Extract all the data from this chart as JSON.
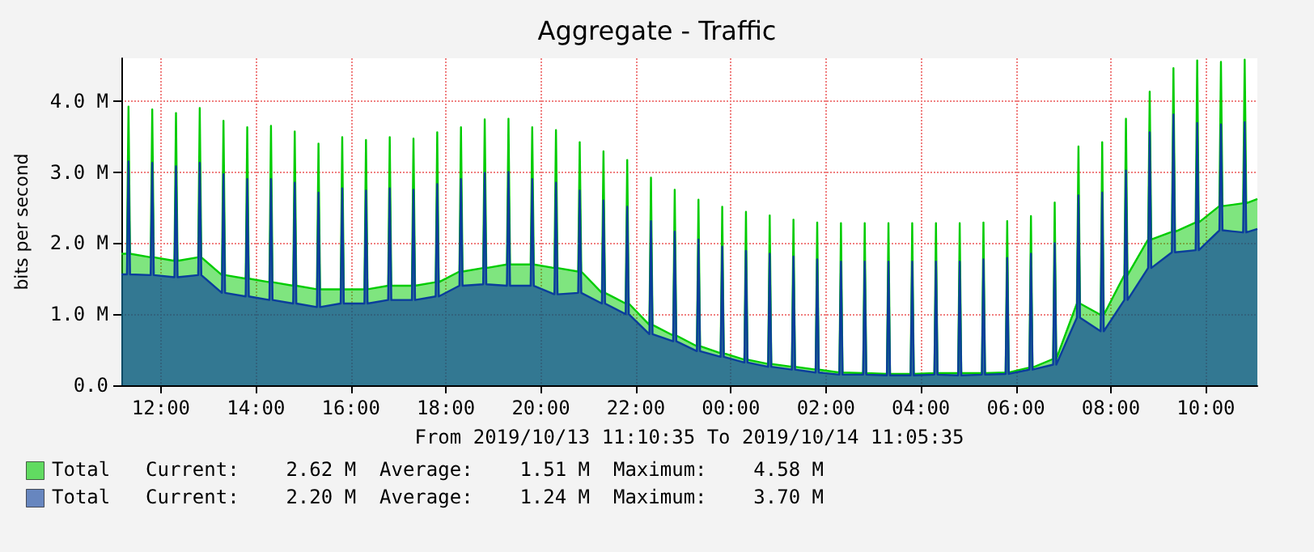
{
  "chart_data": {
    "type": "area",
    "title": "Aggregate - Traffic",
    "xlabel": "From 2019/10/13 11:10:35 To 2019/10/14 11:05:35",
    "ylabel": "bits per second",
    "x": [
      "2019-10-13T11:10",
      "2019-10-13T11:17",
      "2019-10-13T11:19",
      "2019-10-13T11:21",
      "2019-10-13T11:47",
      "2019-10-13T11:49",
      "2019-10-13T11:51",
      "2019-10-13T12:17",
      "2019-10-13T12:19",
      "2019-10-13T12:21",
      "2019-10-13T12:47",
      "2019-10-13T12:49",
      "2019-10-13T12:51",
      "2019-10-13T13:17",
      "2019-10-13T13:19",
      "2019-10-13T13:21",
      "2019-10-13T13:47",
      "2019-10-13T13:49",
      "2019-10-13T13:51",
      "2019-10-13T14:17",
      "2019-10-13T14:19",
      "2019-10-13T14:21",
      "2019-10-13T14:47",
      "2019-10-13T14:49",
      "2019-10-13T14:51",
      "2019-10-13T15:17",
      "2019-10-13T15:19",
      "2019-10-13T15:21",
      "2019-10-13T15:47",
      "2019-10-13T15:49",
      "2019-10-13T15:51",
      "2019-10-13T16:17",
      "2019-10-13T16:19",
      "2019-10-13T16:21",
      "2019-10-13T16:47",
      "2019-10-13T16:49",
      "2019-10-13T16:51",
      "2019-10-13T17:17",
      "2019-10-13T17:19",
      "2019-10-13T17:21",
      "2019-10-13T17:47",
      "2019-10-13T17:49",
      "2019-10-13T17:51",
      "2019-10-13T18:17",
      "2019-10-13T18:19",
      "2019-10-13T18:21",
      "2019-10-13T18:47",
      "2019-10-13T18:49",
      "2019-10-13T18:51",
      "2019-10-13T19:17",
      "2019-10-13T19:19",
      "2019-10-13T19:21",
      "2019-10-13T19:47",
      "2019-10-13T19:49",
      "2019-10-13T19:51",
      "2019-10-13T20:17",
      "2019-10-13T20:19",
      "2019-10-13T20:21",
      "2019-10-13T20:47",
      "2019-10-13T20:49",
      "2019-10-13T20:51",
      "2019-10-13T21:17",
      "2019-10-13T21:19",
      "2019-10-13T21:21",
      "2019-10-13T21:47",
      "2019-10-13T21:49",
      "2019-10-13T21:51",
      "2019-10-13T22:17",
      "2019-10-13T22:19",
      "2019-10-13T22:21",
      "2019-10-13T22:47",
      "2019-10-13T22:49",
      "2019-10-13T22:51",
      "2019-10-13T23:17",
      "2019-10-13T23:19",
      "2019-10-13T23:21",
      "2019-10-13T23:47",
      "2019-10-13T23:49",
      "2019-10-13T23:51",
      "2019-10-14T00:17",
      "2019-10-14T00:19",
      "2019-10-14T00:21",
      "2019-10-14T00:47",
      "2019-10-14T00:49",
      "2019-10-14T00:51",
      "2019-10-14T01:17",
      "2019-10-14T01:19",
      "2019-10-14T01:21",
      "2019-10-14T01:47",
      "2019-10-14T01:49",
      "2019-10-14T01:51",
      "2019-10-14T02:17",
      "2019-10-14T02:19",
      "2019-10-14T02:21",
      "2019-10-14T02:47",
      "2019-10-14T02:49",
      "2019-10-14T02:51",
      "2019-10-14T03:17",
      "2019-10-14T03:19",
      "2019-10-14T03:21",
      "2019-10-14T03:47",
      "2019-10-14T03:49",
      "2019-10-14T03:51",
      "2019-10-14T04:17",
      "2019-10-14T04:19",
      "2019-10-14T04:21",
      "2019-10-14T04:47",
      "2019-10-14T04:49",
      "2019-10-14T04:51",
      "2019-10-14T05:17",
      "2019-10-14T05:19",
      "2019-10-14T05:21",
      "2019-10-14T05:47",
      "2019-10-14T05:49",
      "2019-10-14T05:51",
      "2019-10-14T06:17",
      "2019-10-14T06:19",
      "2019-10-14T06:21",
      "2019-10-14T06:47",
      "2019-10-14T06:49",
      "2019-10-14T06:51",
      "2019-10-14T07:17",
      "2019-10-14T07:19",
      "2019-10-14T07:21",
      "2019-10-14T07:47",
      "2019-10-14T07:49",
      "2019-10-14T07:51",
      "2019-10-14T08:17",
      "2019-10-14T08:19",
      "2019-10-14T08:21",
      "2019-10-14T08:47",
      "2019-10-14T08:49",
      "2019-10-14T08:51",
      "2019-10-14T09:17",
      "2019-10-14T09:19",
      "2019-10-14T09:21",
      "2019-10-14T09:47",
      "2019-10-14T09:49",
      "2019-10-14T09:51",
      "2019-10-14T10:17",
      "2019-10-14T10:19",
      "2019-10-14T10:21",
      "2019-10-14T10:47",
      "2019-10-14T10:49",
      "2019-10-14T10:51",
      "2019-10-14T11:05"
    ],
    "series": [
      {
        "name": "Total",
        "color": "#00cc00",
        "values": [
          1.85,
          1.85,
          3.92,
          1.85,
          1.8,
          3.88,
          1.8,
          1.75,
          3.83,
          1.75,
          1.8,
          3.9,
          1.8,
          1.55,
          3.72,
          1.55,
          1.5,
          3.63,
          1.5,
          1.45,
          3.65,
          1.45,
          1.4,
          3.57,
          1.4,
          1.35,
          3.4,
          1.35,
          1.35,
          3.49,
          1.35,
          1.35,
          3.45,
          1.35,
          1.4,
          3.49,
          1.4,
          1.4,
          3.47,
          1.4,
          1.45,
          3.56,
          1.45,
          1.6,
          3.63,
          1.6,
          1.65,
          3.74,
          1.65,
          1.7,
          3.75,
          1.7,
          1.7,
          3.63,
          1.7,
          1.65,
          3.59,
          1.65,
          1.6,
          3.42,
          1.6,
          1.3,
          3.29,
          1.3,
          1.15,
          3.17,
          1.15,
          0.85,
          2.92,
          0.85,
          0.7,
          2.75,
          0.7,
          0.55,
          2.61,
          0.55,
          0.45,
          2.51,
          0.45,
          0.36,
          2.44,
          0.36,
          0.3,
          2.39,
          0.3,
          0.26,
          2.33,
          0.26,
          0.22,
          2.29,
          0.22,
          0.18,
          2.28,
          0.18,
          0.17,
          2.28,
          0.17,
          0.16,
          2.28,
          0.16,
          0.16,
          2.28,
          0.16,
          0.17,
          2.28,
          0.17,
          0.17,
          2.28,
          0.17,
          0.17,
          2.29,
          0.17,
          0.18,
          2.31,
          0.18,
          0.25,
          2.38,
          0.25,
          0.37,
          2.57,
          0.37,
          1.15,
          3.36,
          1.15,
          0.99,
          3.42,
          0.99,
          1.55,
          3.75,
          1.55,
          2.05,
          4.13,
          2.05,
          2.16,
          4.46,
          2.16,
          2.29,
          4.57,
          2.29,
          2.52,
          4.55,
          2.52,
          2.56,
          4.58,
          2.56,
          2.62
        ]
      },
      {
        "name": "Total",
        "color": "#0a3d9c",
        "values": [
          1.56,
          1.56,
          3.15,
          1.56,
          1.55,
          3.13,
          1.55,
          1.52,
          3.08,
          1.52,
          1.55,
          3.13,
          1.55,
          1.3,
          2.97,
          1.3,
          1.25,
          2.9,
          1.25,
          1.2,
          2.9,
          1.2,
          1.15,
          2.85,
          1.15,
          1.1,
          2.71,
          1.1,
          1.15,
          2.77,
          1.15,
          1.15,
          2.74,
          1.15,
          1.2,
          2.77,
          1.2,
          1.2,
          2.75,
          1.2,
          1.25,
          2.83,
          1.25,
          1.4,
          2.9,
          1.4,
          1.42,
          2.99,
          1.42,
          1.4,
          3.0,
          1.4,
          1.4,
          2.9,
          1.4,
          1.28,
          2.85,
          1.28,
          1.3,
          2.74,
          1.3,
          1.15,
          2.6,
          1.15,
          1.0,
          2.51,
          1.0,
          0.72,
          2.31,
          0.72,
          0.62,
          2.16,
          0.62,
          0.48,
          2.05,
          0.48,
          0.4,
          1.95,
          0.4,
          0.32,
          1.89,
          0.32,
          0.26,
          1.85,
          0.26,
          0.22,
          1.81,
          0.22,
          0.18,
          1.77,
          0.18,
          0.15,
          1.74,
          0.15,
          0.15,
          1.74,
          0.15,
          0.14,
          1.74,
          0.14,
          0.14,
          1.74,
          0.14,
          0.15,
          1.74,
          0.15,
          0.14,
          1.74,
          0.14,
          0.15,
          1.77,
          0.15,
          0.16,
          1.79,
          0.16,
          0.22,
          1.85,
          0.22,
          0.29,
          2.0,
          0.29,
          0.95,
          2.67,
          0.95,
          0.76,
          2.71,
          0.76,
          1.2,
          3.02,
          1.2,
          1.65,
          3.56,
          1.65,
          1.87,
          3.81,
          1.87,
          1.9,
          3.69,
          1.9,
          2.18,
          3.67,
          2.18,
          2.15,
          3.7,
          2.15,
          2.2
        ]
      }
    ],
    "xlim": [
      "2019-10-13T11:10",
      "2019-10-14T11:05"
    ],
    "xticks": [
      {
        "value": "2019-10-13T12:00",
        "label": "12:00"
      },
      {
        "value": "2019-10-13T14:00",
        "label": "14:00"
      },
      {
        "value": "2019-10-13T16:00",
        "label": "16:00"
      },
      {
        "value": "2019-10-13T18:00",
        "label": "18:00"
      },
      {
        "value": "2019-10-13T20:00",
        "label": "20:00"
      },
      {
        "value": "2019-10-13T22:00",
        "label": "22:00"
      },
      {
        "value": "2019-10-14T00:00",
        "label": "00:00"
      },
      {
        "value": "2019-10-14T02:00",
        "label": "02:00"
      },
      {
        "value": "2019-10-14T04:00",
        "label": "04:00"
      },
      {
        "value": "2019-10-14T06:00",
        "label": "06:00"
      },
      {
        "value": "2019-10-14T08:00",
        "label": "08:00"
      },
      {
        "value": "2019-10-14T10:00",
        "label": "10:00"
      }
    ],
    "ylim": [
      0,
      4.6
    ],
    "yticks": [
      {
        "value": 0,
        "label": "0.0"
      },
      {
        "value": 1,
        "label": "1.0 M"
      },
      {
        "value": 2,
        "label": "2.0 M"
      },
      {
        "value": 3,
        "label": "3.0 M"
      },
      {
        "value": 4,
        "label": "4.0 M"
      }
    ],
    "grid": true,
    "legend": "bottom left",
    "marker": "none",
    "line_style": "solid",
    "annotations": [
      "Current:    2.62 M  Average:    1.51 M  Maximum:    4.58 M",
      "Current:    2.20 M  Average:    1.24 M  Maximum:    3.70 M"
    ]
  }
}
